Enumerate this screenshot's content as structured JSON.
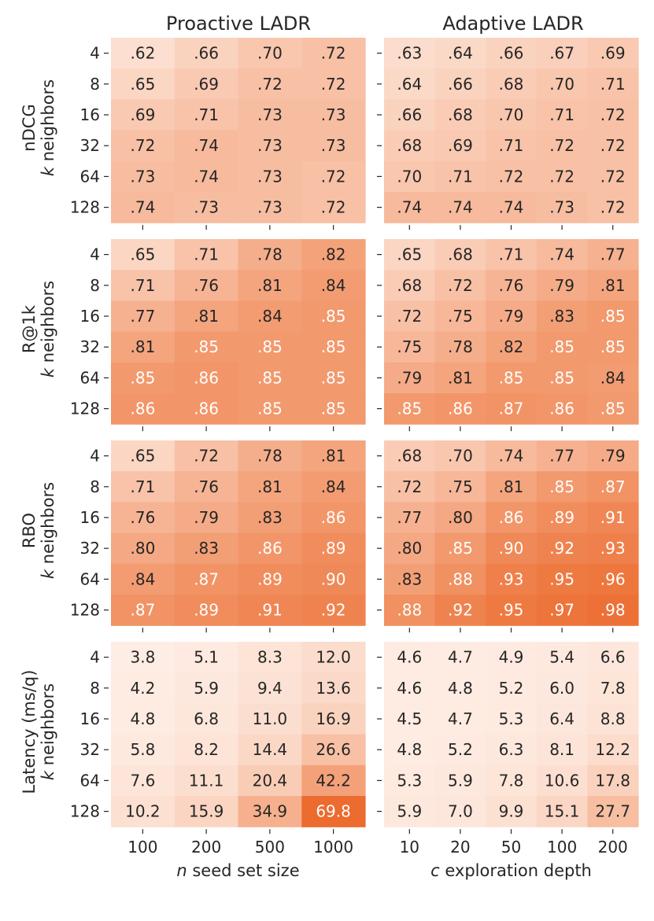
{
  "chart_data": {
    "type": "heatmap",
    "panel_titles": [
      "Proactive LADR",
      "Adaptive LADR"
    ],
    "row_axis": {
      "label": "k neighbors",
      "ticks": [
        "4",
        "8",
        "16",
        "32",
        "64",
        "128"
      ]
    },
    "col_axes": [
      {
        "label": "n seed set size",
        "ticks": [
          "100",
          "200",
          "500",
          "1000"
        ]
      },
      {
        "label": "c exploration depth",
        "ticks": [
          "10",
          "20",
          "50",
          "100",
          "200"
        ]
      }
    ],
    "metrics": [
      {
        "name": "nDCG",
        "range": [
          0.55,
          1.0
        ],
        "proactive": [
          [
            ".62",
            ".66",
            ".70",
            ".72"
          ],
          [
            ".65",
            ".69",
            ".72",
            ".72"
          ],
          [
            ".69",
            ".71",
            ".73",
            ".73"
          ],
          [
            ".72",
            ".74",
            ".73",
            ".73"
          ],
          [
            ".73",
            ".74",
            ".73",
            ".72"
          ],
          [
            ".74",
            ".73",
            ".73",
            ".72"
          ]
        ],
        "adaptive": [
          [
            ".63",
            ".64",
            ".66",
            ".67",
            ".69"
          ],
          [
            ".64",
            ".66",
            ".68",
            ".70",
            ".71"
          ],
          [
            ".66",
            ".68",
            ".70",
            ".71",
            ".72"
          ],
          [
            ".68",
            ".69",
            ".71",
            ".72",
            ".72"
          ],
          [
            ".70",
            ".71",
            ".72",
            ".72",
            ".72"
          ],
          [
            ".74",
            ".74",
            ".74",
            ".73",
            ".72"
          ]
        ]
      },
      {
        "name": "R@1k",
        "range": [
          0.55,
          1.0
        ],
        "proactive": [
          [
            ".65",
            ".71",
            ".78",
            ".82"
          ],
          [
            ".71",
            ".76",
            ".81",
            ".84"
          ],
          [
            ".77",
            ".81",
            ".84",
            ".85"
          ],
          [
            ".81",
            ".85",
            ".85",
            ".85"
          ],
          [
            ".85",
            ".86",
            ".85",
            ".85"
          ],
          [
            ".86",
            ".86",
            ".85",
            ".85"
          ]
        ],
        "adaptive": [
          [
            ".65",
            ".68",
            ".71",
            ".74",
            ".77"
          ],
          [
            ".68",
            ".72",
            ".76",
            ".79",
            ".81"
          ],
          [
            ".72",
            ".75",
            ".79",
            ".83",
            ".85"
          ],
          [
            ".75",
            ".78",
            ".82",
            ".85",
            ".85"
          ],
          [
            ".79",
            ".81",
            ".85",
            ".85",
            ".84"
          ],
          [
            ".85",
            ".86",
            ".87",
            ".86",
            ".85"
          ]
        ]
      },
      {
        "name": "RBO",
        "range": [
          0.55,
          1.0
        ],
        "proactive": [
          [
            ".65",
            ".72",
            ".78",
            ".81"
          ],
          [
            ".71",
            ".76",
            ".81",
            ".84"
          ],
          [
            ".76",
            ".79",
            ".83",
            ".86"
          ],
          [
            ".80",
            ".83",
            ".86",
            ".89"
          ],
          [
            ".84",
            ".87",
            ".89",
            ".90"
          ],
          [
            ".87",
            ".89",
            ".91",
            ".92"
          ]
        ],
        "adaptive": [
          [
            ".68",
            ".70",
            ".74",
            ".77",
            ".79"
          ],
          [
            ".72",
            ".75",
            ".81",
            ".85",
            ".87"
          ],
          [
            ".77",
            ".80",
            ".86",
            ".89",
            ".91"
          ],
          [
            ".80",
            ".85",
            ".90",
            ".92",
            ".93"
          ],
          [
            ".83",
            ".88",
            ".93",
            ".95",
            ".96"
          ],
          [
            ".88",
            ".92",
            ".95",
            ".97",
            ".98"
          ]
        ]
      },
      {
        "name": "Latency (ms/q)",
        "range": [
          0,
          70
        ],
        "proactive": [
          [
            "3.8",
            "5.1",
            "8.3",
            "12.0"
          ],
          [
            "4.2",
            "5.9",
            "9.4",
            "13.6"
          ],
          [
            "4.8",
            "6.8",
            "11.0",
            "16.9"
          ],
          [
            "5.8",
            "8.2",
            "14.4",
            "26.6"
          ],
          [
            "7.6",
            "11.1",
            "20.4",
            "42.2"
          ],
          [
            "10.2",
            "15.9",
            "34.9",
            "69.8"
          ]
        ],
        "adaptive": [
          [
            "4.6",
            "4.7",
            "4.9",
            "5.4",
            "6.6"
          ],
          [
            "4.6",
            "4.8",
            "5.2",
            "6.0",
            "7.8"
          ],
          [
            "4.5",
            "4.7",
            "5.3",
            "6.4",
            "8.8"
          ],
          [
            "4.8",
            "5.2",
            "6.3",
            "8.1",
            "12.2"
          ],
          [
            "5.3",
            "5.9",
            "7.8",
            "10.6",
            "17.8"
          ],
          [
            "5.9",
            "7.0",
            "9.9",
            "15.1",
            "27.7"
          ]
        ]
      }
    ],
    "colors": {
      "low": "#fff4ee",
      "high": "#ec6b2d",
      "text_dark": "#262626",
      "text_light": "#ffffff"
    }
  }
}
